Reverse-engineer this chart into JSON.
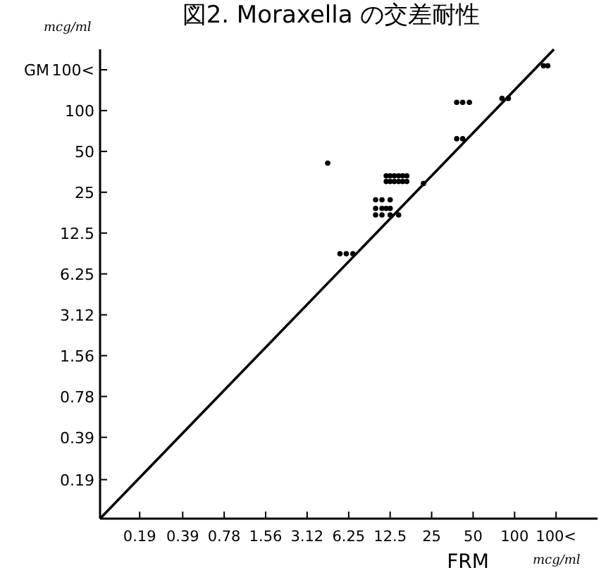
{
  "chart_data": {
    "type": "scatter",
    "title": "図2. Moraxella の交差耐性",
    "xlabel": "FRM",
    "ylabel": "GM",
    "annotations": [
      "mcg/ml",
      "mcg/ml"
    ],
    "log": "xy",
    "xlim": [
      0.098,
      400
    ],
    "ylim": [
      0.098,
      283
    ],
    "xticks": [
      0.19,
      0.39,
      0.78,
      1.56,
      3.12,
      6.25,
      12.5,
      25,
      50,
      100,
      {
        "value": 200,
        "label": "100<"
      }
    ],
    "yticks": [
      0.19,
      0.39,
      0.78,
      1.56,
      3.12,
      6.25,
      12.5,
      25,
      50,
      100,
      {
        "value": 200,
        "label": "100<"
      }
    ],
    "grid": false,
    "series": [
      {
        "type": "line",
        "color": "#000000",
        "marker": "none",
        "line_style": "solid",
        "x": [
          0.098,
          193
        ],
        "values": [
          0.098,
          283
        ]
      },
      {
        "color": "#000000",
        "marker": "circle",
        "x": [
          162,
          174,
          81,
          90,
          38,
          42,
          47,
          38,
          42,
          4.4,
          11.7,
          12.5,
          13.4,
          14.4,
          15.4,
          16.5,
          11.7,
          12.5,
          13.4,
          14.4,
          15.4,
          16.5,
          21.8,
          9.8,
          10.9,
          12.5,
          9.8,
          10.9,
          11.7,
          12.5,
          9.8,
          10.9,
          12.5,
          14.4,
          5.4,
          6.0,
          6.7
        ],
        "values": [
          214,
          214,
          123,
          123,
          115,
          115,
          115,
          62,
          62,
          41,
          33,
          33,
          33,
          33,
          33,
          33,
          30,
          30,
          30,
          30,
          30,
          30,
          29,
          22,
          22,
          22,
          19,
          19,
          19,
          19,
          17,
          17,
          17,
          17,
          8.8,
          8.8,
          8.8
        ]
      }
    ]
  }
}
